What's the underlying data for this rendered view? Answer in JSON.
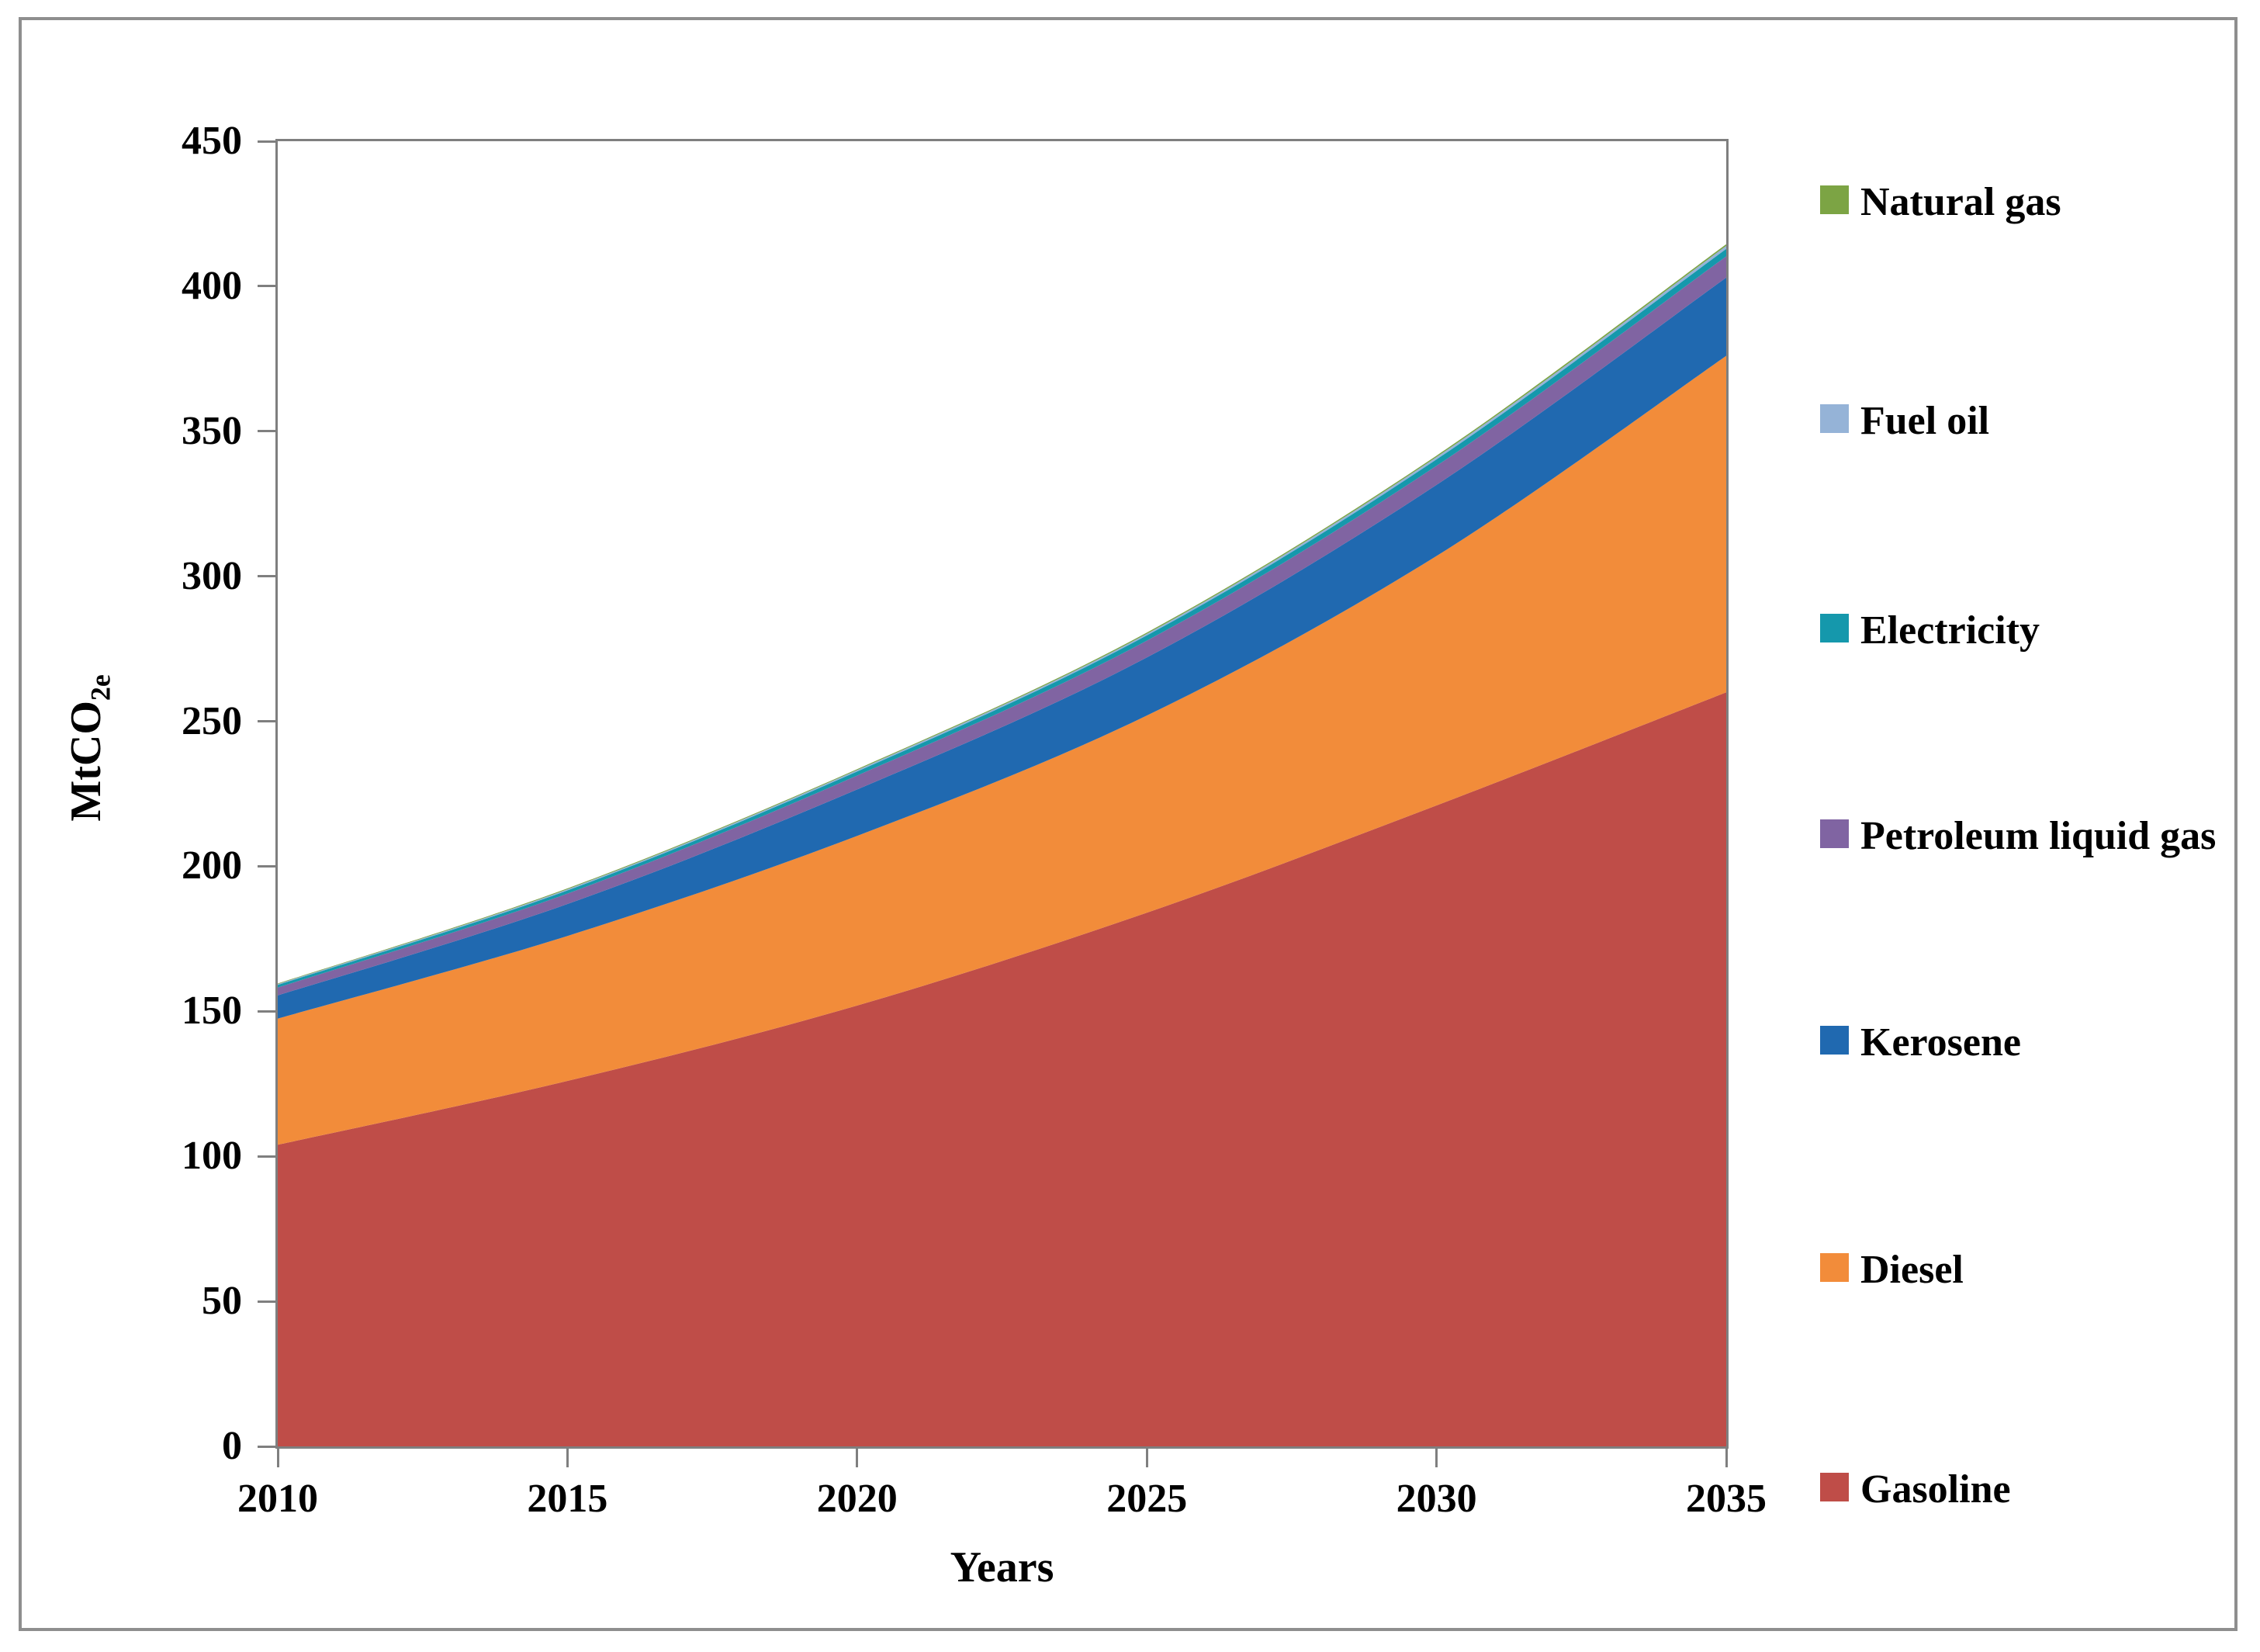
{
  "chart_data": {
    "type": "area",
    "stacked": true,
    "title": "",
    "xlabel": "Years",
    "ylabel": "MtCO2e",
    "ylabel_prefix": "MtCO",
    "ylabel_sub": "2e",
    "x": [
      2010,
      2015,
      2020,
      2025,
      2030,
      2035
    ],
    "x_tick_labels": [
      "2010",
      "2015",
      "2020",
      "2025",
      "2030",
      "2035"
    ],
    "y_tick_labels": [
      "0",
      "50",
      "100",
      "150",
      "200",
      "250",
      "300",
      "350",
      "400",
      "450"
    ],
    "ylim": [
      0,
      450
    ],
    "y_tick_step": 50,
    "grid": false,
    "legend_position": "right",
    "axis_color": "#7f7f7f",
    "frame_color": "#8e8e8e",
    "series_bottom_to_top": [
      {
        "name": "Gasoline",
        "color": "#BF4D48",
        "values": [
          104,
          126,
          152,
          184,
          221,
          260
        ]
      },
      {
        "name": "Diesel",
        "color": "#F28C3A",
        "values": [
          43.5,
          50,
          58.5,
          68,
          86,
          116
        ]
      },
      {
        "name": "Kerosene",
        "color": "#2069B0",
        "values": [
          8,
          11,
          16,
          20,
          24.5,
          27
        ]
      },
      {
        "name": "Petroleum liquid gas",
        "color": "#8064A2",
        "values": [
          2.7,
          3.6,
          4.8,
          5.8,
          6.6,
          7.3
        ]
      },
      {
        "name": "Electricity",
        "color": "#1598AC",
        "values": [
          0.9,
          1.1,
          1.4,
          1.8,
          2.2,
          2.6
        ]
      },
      {
        "name": "Fuel oil",
        "color": "#95B3D7",
        "values": [
          0.3,
          0.4,
          0.5,
          0.6,
          0.8,
          1.0
        ]
      },
      {
        "name": "Natural gas",
        "color": "#7CA444",
        "values": [
          0.2,
          0.3,
          0.3,
          0.4,
          0.5,
          0.6
        ]
      }
    ],
    "legend_top_to_bottom": [
      "Natural gas",
      "Fuel oil",
      "Electricity",
      "Petroleum liquid gas",
      "Kerosene",
      "Diesel",
      "Gasoline"
    ]
  }
}
